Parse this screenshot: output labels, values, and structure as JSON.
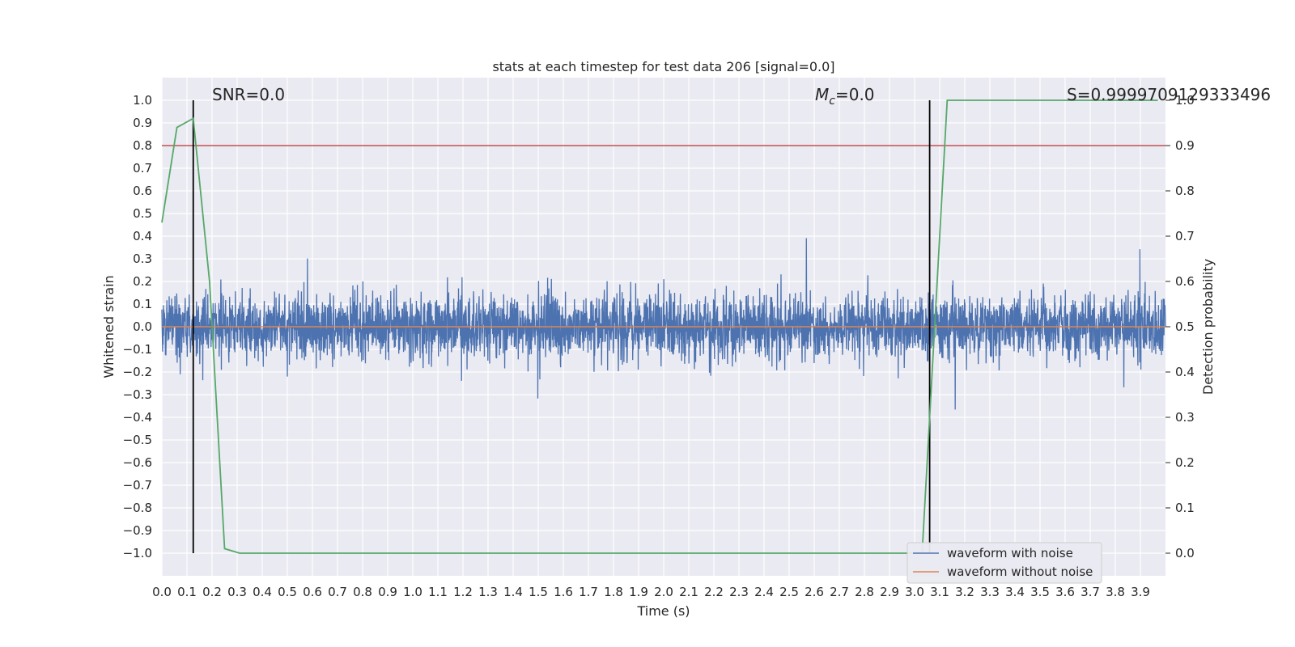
{
  "chart_data": {
    "type": "line",
    "title": "stats at each timestep for test data 206 [signal=0.0]",
    "xlabel": "Time (s)",
    "ylabel": "Whitened strain",
    "y2label": "Detection probability",
    "xlim": [
      0.0,
      4.0
    ],
    "ylim": [
      -1.1,
      1.1
    ],
    "y2lim": [
      -0.05,
      1.05
    ],
    "x_ticks": [
      "0.0",
      "0.1",
      "0.2",
      "0.3",
      "0.4",
      "0.5",
      "0.6",
      "0.7",
      "0.8",
      "0.9",
      "1.0",
      "1.1",
      "1.2",
      "1.3",
      "1.4",
      "1.5",
      "1.6",
      "1.7",
      "1.8",
      "1.9",
      "2.0",
      "2.1",
      "2.2",
      "2.3",
      "2.4",
      "2.5",
      "2.6",
      "2.7",
      "2.8",
      "2.9",
      "3.0",
      "3.1",
      "3.2",
      "3.3",
      "3.4",
      "3.5",
      "3.6",
      "3.7",
      "3.8",
      "3.9"
    ],
    "y_ticks": [
      "1.0",
      "0.9",
      "0.8",
      "0.7",
      "0.6",
      "0.5",
      "0.4",
      "0.3",
      "0.2",
      "0.1",
      "0.0",
      "−0.1",
      "−0.2",
      "−0.3",
      "−0.4",
      "−0.5",
      "−0.6",
      "−0.7",
      "−0.8",
      "−0.9",
      "−1.0"
    ],
    "y2_ticks": [
      "1.0",
      "0.9",
      "0.8",
      "0.7",
      "0.6",
      "0.5",
      "0.4",
      "0.3",
      "0.2",
      "0.1",
      "0.0"
    ],
    "grid": true,
    "series": [
      {
        "name": "waveform with noise",
        "color": "#4c72b0",
        "noise_amplitude": 0.3
      },
      {
        "name": "waveform without noise",
        "color": "#dd8452",
        "constant": 0.0
      }
    ],
    "detection_probability": {
      "color": "#55a868",
      "x": [
        0.0,
        0.06,
        0.125,
        0.19,
        0.25,
        0.31,
        3.03,
        3.06,
        3.13,
        3.97
      ],
      "y": [
        0.73,
        0.94,
        0.96,
        0.6,
        0.01,
        0.0,
        0.0,
        0.3,
        1.0,
        1.0
      ]
    },
    "threshold": {
      "value": 0.9,
      "axis": "y2",
      "color": "#c44e52"
    },
    "vlines": [
      0.125,
      3.06
    ],
    "vline_ymin": -1.0,
    "vline_ymax": 1.0,
    "annotations": {
      "snr": "SNR=0.0",
      "mc_sym": "M",
      "mc_sub": "c",
      "mc_val": "=0.0",
      "s": "S=0.9999709129333496"
    },
    "legend_position": "lower-right",
    "colors": {
      "background": "#eaeaf2",
      "grid": "#ffffff"
    }
  }
}
